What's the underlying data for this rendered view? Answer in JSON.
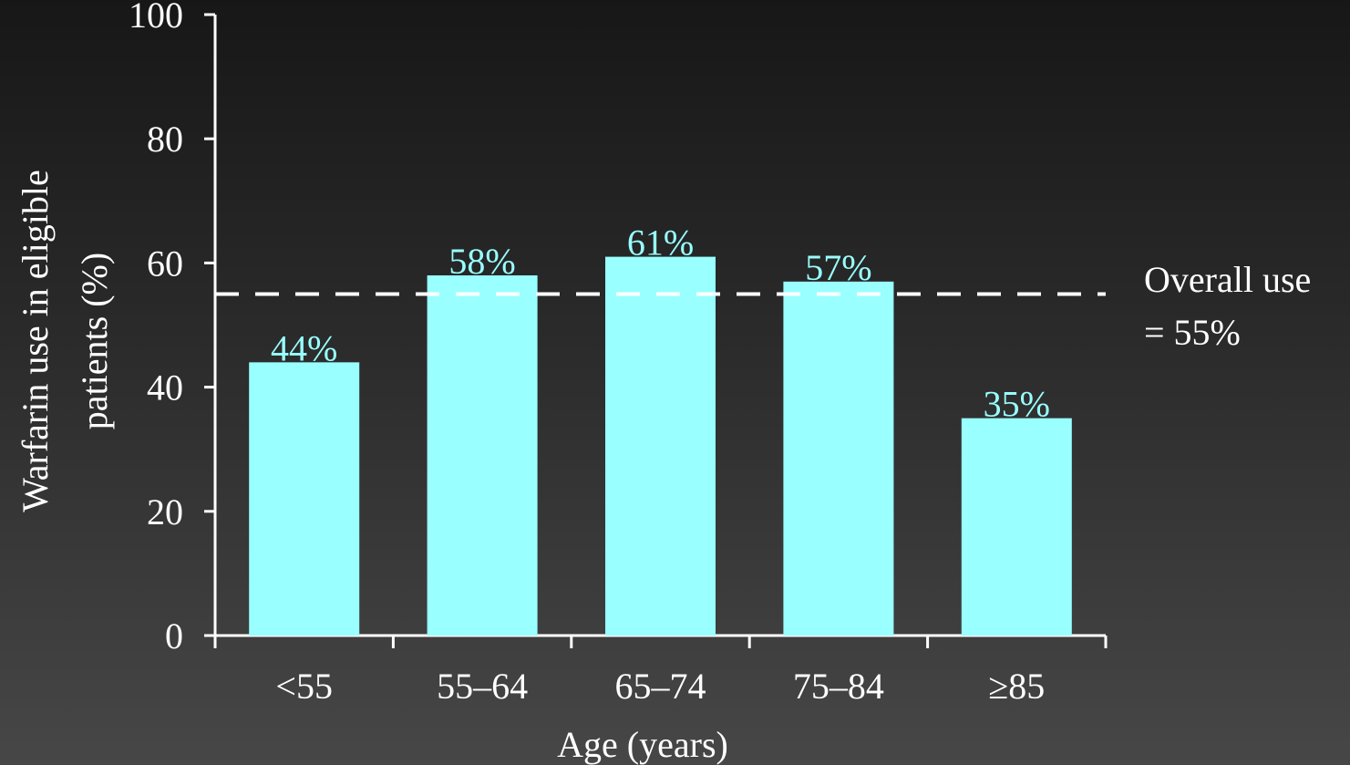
{
  "chart_data": {
    "type": "bar",
    "categories": [
      "<55",
      "55–64",
      "65–74",
      "75–84",
      "≥85"
    ],
    "values": [
      44,
      58,
      61,
      57,
      35
    ],
    "data_labels": [
      "44%",
      "58%",
      "61%",
      "57%",
      "35%"
    ],
    "title": "",
    "xlabel": "Age (years)",
    "ylabel_lines": [
      "Warfarin use in eligible",
      "patients (%)"
    ],
    "ylim": [
      0,
      100
    ],
    "yticks": [
      0,
      20,
      40,
      60,
      80,
      100
    ],
    "grid": false,
    "reference_line": {
      "value": 55,
      "style": "dashed",
      "label_lines": [
        "Overall use",
        "= 55%"
      ]
    },
    "colors": {
      "bar": "#99ffff",
      "data_label": "#99ffff",
      "axis": "#ffffff",
      "text": "#ffffff",
      "reference_line": "#ffffff"
    }
  }
}
